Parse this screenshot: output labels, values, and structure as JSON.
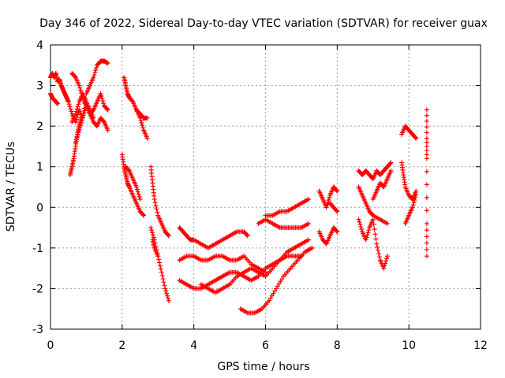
{
  "chart_data": {
    "type": "scatter",
    "title": "Day 346 of 2022, Sidereal Day-to-day VTEC variation (SDTVAR) for receiver guax",
    "xlabel": "GPS time / hours",
    "ylabel": "SDTVAR / TECUs",
    "xlim": [
      0,
      12
    ],
    "ylim": [
      -3,
      4
    ],
    "xticks": [
      "0",
      "2",
      "4",
      "6",
      "8",
      "10",
      "12"
    ],
    "yticks": [
      "-3",
      "-2",
      "-1",
      "0",
      "1",
      "2",
      "3",
      "4"
    ],
    "grid": true,
    "marker": "+",
    "color": "#ff0000",
    "series": [
      {
        "x": [
          0.0,
          0.05,
          0.1,
          0.15,
          0.2,
          0.25,
          0.3,
          0.35,
          0.4,
          0.45,
          0.5
        ],
        "y": [
          3.2,
          3.3,
          3.2,
          3.3,
          3.1,
          3.15,
          3.0,
          2.9,
          2.8,
          2.7,
          2.6
        ]
      },
      {
        "x": [
          0.0,
          0.05,
          0.1,
          0.15,
          0.2
        ],
        "y": [
          2.8,
          2.7,
          2.65,
          2.6,
          2.55
        ]
      },
      {
        "x": [
          0.5,
          0.6,
          0.7,
          0.8,
          0.9,
          1.0,
          1.1,
          1.2,
          1.3,
          1.4,
          1.5,
          1.6
        ],
        "y": [
          2.6,
          2.3,
          2.1,
          2.4,
          2.2,
          2.8,
          3.0,
          3.2,
          3.5,
          3.6,
          3.6,
          3.55
        ]
      },
      {
        "x": [
          0.55,
          0.6,
          0.65,
          0.7,
          0.75,
          0.8,
          0.85
        ],
        "y": [
          0.8,
          1.0,
          1.2,
          1.5,
          1.8,
          2.0,
          2.2
        ]
      },
      {
        "x": [
          0.6,
          0.7,
          0.8,
          0.9,
          1.0,
          1.1,
          1.2,
          1.3,
          1.4,
          1.5,
          1.6
        ],
        "y": [
          3.3,
          3.2,
          3.0,
          2.7,
          2.5,
          2.3,
          2.4,
          2.6,
          2.8,
          2.5,
          2.4
        ]
      },
      {
        "x": [
          0.7,
          0.8,
          0.9,
          1.0,
          1.1,
          1.2,
          1.3,
          1.4,
          1.5,
          1.6
        ],
        "y": [
          1.6,
          1.9,
          2.2,
          2.5,
          2.3,
          2.1,
          2.0,
          2.2,
          2.1,
          1.9
        ]
      },
      {
        "x": [
          0.6,
          0.7,
          0.8,
          0.9,
          1.0,
          1.1,
          1.2
        ],
        "y": [
          2.1,
          2.3,
          2.6,
          2.8,
          2.6,
          2.4,
          2.2
        ]
      },
      {
        "x": [
          2.05,
          2.1,
          2.15,
          2.2,
          2.3,
          2.4,
          2.5,
          2.6,
          2.7
        ],
        "y": [
          3.2,
          3.0,
          2.8,
          2.7,
          2.6,
          2.4,
          2.2,
          1.9,
          1.7
        ]
      },
      {
        "x": [
          2.4,
          2.5,
          2.6,
          2.7
        ],
        "y": [
          2.4,
          2.3,
          2.2,
          2.2
        ]
      },
      {
        "x": [
          2.0,
          2.05,
          2.1,
          2.15,
          2.2,
          2.3,
          2.4,
          2.5,
          2.6
        ],
        "y": [
          1.3,
          1.0,
          0.8,
          0.6,
          0.5,
          0.3,
          0.1,
          -0.1,
          -0.2
        ]
      },
      {
        "x": [
          2.1,
          2.2,
          2.3,
          2.4,
          2.5
        ],
        "y": [
          1.0,
          0.9,
          0.7,
          0.5,
          0.2
        ]
      },
      {
        "x": [
          2.8,
          2.85,
          2.9,
          3.0,
          3.1,
          3.2,
          3.3
        ],
        "y": [
          1.0,
          0.6,
          0.2,
          -0.2,
          -0.4,
          -0.6,
          -0.7
        ]
      },
      {
        "x": [
          2.8,
          2.9,
          3.0,
          3.1,
          3.2,
          3.3
        ],
        "y": [
          -0.5,
          -0.8,
          -1.2,
          -1.6,
          -2.0,
          -2.3
        ]
      },
      {
        "x": [
          2.85,
          2.9,
          3.0
        ],
        "y": [
          -0.8,
          -1.0,
          -1.2
        ]
      },
      {
        "x": [
          3.6,
          3.7,
          3.8,
          3.9,
          4.0,
          4.2,
          4.4,
          4.6,
          4.8,
          5.0,
          5.2,
          5.4,
          5.5
        ],
        "y": [
          -0.5,
          -0.6,
          -0.7,
          -0.8,
          -0.8,
          -0.9,
          -1.0,
          -0.9,
          -0.8,
          -0.7,
          -0.6,
          -0.6,
          -0.7
        ]
      },
      {
        "x": [
          3.6,
          3.8,
          4.0,
          4.2,
          4.4,
          4.6,
          4.8,
          5.0,
          5.2,
          5.4,
          5.6,
          5.8,
          6.0
        ],
        "y": [
          -1.3,
          -1.2,
          -1.2,
          -1.3,
          -1.3,
          -1.2,
          -1.2,
          -1.3,
          -1.3,
          -1.2,
          -1.4,
          -1.5,
          -1.6
        ]
      },
      {
        "x": [
          3.6,
          3.8,
          4.0,
          4.2,
          4.4,
          4.6,
          4.8,
          5.0,
          5.2,
          5.4,
          5.6,
          5.8,
          6.0,
          6.2,
          6.4,
          6.6,
          6.8,
          7.0
        ],
        "y": [
          -1.8,
          -1.9,
          -2.0,
          -2.0,
          -1.9,
          -1.8,
          -1.7,
          -1.6,
          -1.6,
          -1.7,
          -1.8,
          -1.7,
          -1.5,
          -1.4,
          -1.3,
          -1.2,
          -1.2,
          -1.2
        ]
      },
      {
        "x": [
          4.2,
          4.4,
          4.6,
          4.8,
          5.0,
          5.2,
          5.4,
          5.6,
          5.8,
          6.0,
          6.2,
          6.4,
          6.6,
          6.8,
          7.0,
          7.2
        ],
        "y": [
          -1.9,
          -2.0,
          -2.1,
          -2.0,
          -1.9,
          -1.7,
          -1.6,
          -1.5,
          -1.6,
          -1.7,
          -1.5,
          -1.3,
          -1.1,
          -1.0,
          -0.9,
          -0.8
        ]
      },
      {
        "x": [
          5.3,
          5.5,
          5.7,
          5.9,
          6.1,
          6.3,
          6.5,
          6.7,
          6.9,
          7.1,
          7.3
        ],
        "y": [
          -2.5,
          -2.6,
          -2.6,
          -2.5,
          -2.3,
          -2.0,
          -1.7,
          -1.5,
          -1.3,
          -1.1,
          -1.0
        ]
      },
      {
        "x": [
          6.0,
          6.2,
          6.4,
          6.6,
          6.8,
          7.0,
          7.2
        ],
        "y": [
          -0.2,
          -0.2,
          -0.1,
          -0.1,
          0.0,
          0.1,
          0.2
        ]
      },
      {
        "x": [
          5.8,
          6.0,
          6.2,
          6.4,
          6.6,
          6.8,
          7.0,
          7.2
        ],
        "y": [
          -0.4,
          -0.3,
          -0.4,
          -0.5,
          -0.5,
          -0.5,
          -0.5,
          -0.4
        ]
      },
      {
        "x": [
          7.5,
          7.6,
          7.7,
          7.8,
          7.9,
          8.0
        ],
        "y": [
          0.4,
          0.2,
          0.0,
          0.3,
          0.5,
          0.4
        ]
      },
      {
        "x": [
          7.5,
          7.6,
          7.7,
          7.8,
          7.9,
          8.0
        ],
        "y": [
          -0.6,
          -0.8,
          -0.9,
          -0.7,
          -0.5,
          -0.6
        ]
      },
      {
        "x": [
          7.8,
          7.9,
          8.0
        ],
        "y": [
          0.1,
          0.0,
          -0.1
        ]
      },
      {
        "x": [
          8.6,
          8.7,
          8.8,
          8.9,
          9.0,
          9.1,
          9.2,
          9.3,
          9.4,
          9.5
        ],
        "y": [
          0.9,
          0.8,
          0.9,
          0.8,
          0.7,
          0.9,
          0.8,
          0.9,
          1.0,
          1.1
        ]
      },
      {
        "x": [
          8.6,
          8.7,
          8.8,
          8.9,
          9.0,
          9.2,
          9.4
        ],
        "y": [
          0.5,
          0.3,
          0.1,
          -0.1,
          -0.2,
          -0.3,
          -0.4
        ]
      },
      {
        "x": [
          8.6,
          8.7,
          8.8,
          8.9,
          9.0,
          9.1,
          9.2,
          9.3,
          9.4
        ],
        "y": [
          -0.3,
          -0.6,
          -0.8,
          -0.5,
          -0.3,
          -0.9,
          -1.3,
          -1.5,
          -1.2
        ]
      },
      {
        "x": [
          9.0,
          9.1,
          9.2,
          9.3,
          9.4,
          9.5
        ],
        "y": [
          0.2,
          0.4,
          0.6,
          0.5,
          0.7,
          0.9
        ]
      },
      {
        "x": [
          9.8,
          9.9,
          10.0,
          10.1,
          10.2
        ],
        "y": [
          1.8,
          2.0,
          1.9,
          1.8,
          1.7
        ]
      },
      {
        "x": [
          9.8,
          9.85,
          9.9,
          10.0,
          10.1,
          10.2
        ],
        "y": [
          1.1,
          0.8,
          0.5,
          0.3,
          0.2,
          0.4
        ]
      },
      {
        "x": [
          9.9,
          10.0,
          10.1,
          10.2
        ],
        "y": [
          -0.4,
          -0.2,
          0.0,
          0.3
        ]
      },
      {
        "x": [
          10.5,
          10.5,
          10.5,
          10.5,
          10.5
        ],
        "y": [
          2.4,
          1.7,
          1.2,
          -0.4,
          -1.2
        ]
      }
    ]
  }
}
